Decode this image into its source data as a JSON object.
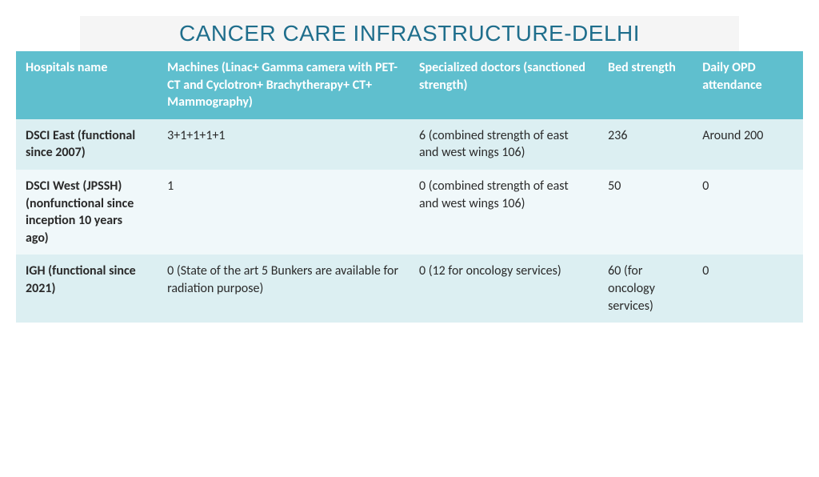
{
  "title": "CANCER CARE INFRASTRUCTURE-DELHI",
  "table": {
    "columns": [
      "Hospitals name",
      "Machines\n(Linac+\nGamma camera with PET-CT and Cyclotron+ Brachytherapy+\nCT+ Mammography)",
      "Specialized doctors (sanctioned strength)",
      "Bed strength",
      "Daily OPD attendance"
    ],
    "rows": [
      [
        "DSCI East (functional since 2007)",
        "3+1+1+1+1",
        "6 (combined strength of east and west wings 106)",
        "236",
        "Around 200"
      ],
      [
        "DSCI West (JPSSH) (nonfunctional since inception 10 years ago)",
        "1",
        "0 (combined strength of east and west wings 106)",
        "50",
        "0"
      ],
      [
        "IGH (functional since 2021)",
        "0\n(State of the art 5 Bunkers are available for radiation purpose)",
        "0 (12 for oncology services)",
        "60 (for oncology services)",
        "0"
      ]
    ],
    "header_bg": "#5fbfce",
    "header_fg": "#ffffff",
    "row_alt_bg_a": "#dceff2",
    "row_alt_bg_b": "#f0f8fa",
    "title_color": "#1f6e8c"
  }
}
